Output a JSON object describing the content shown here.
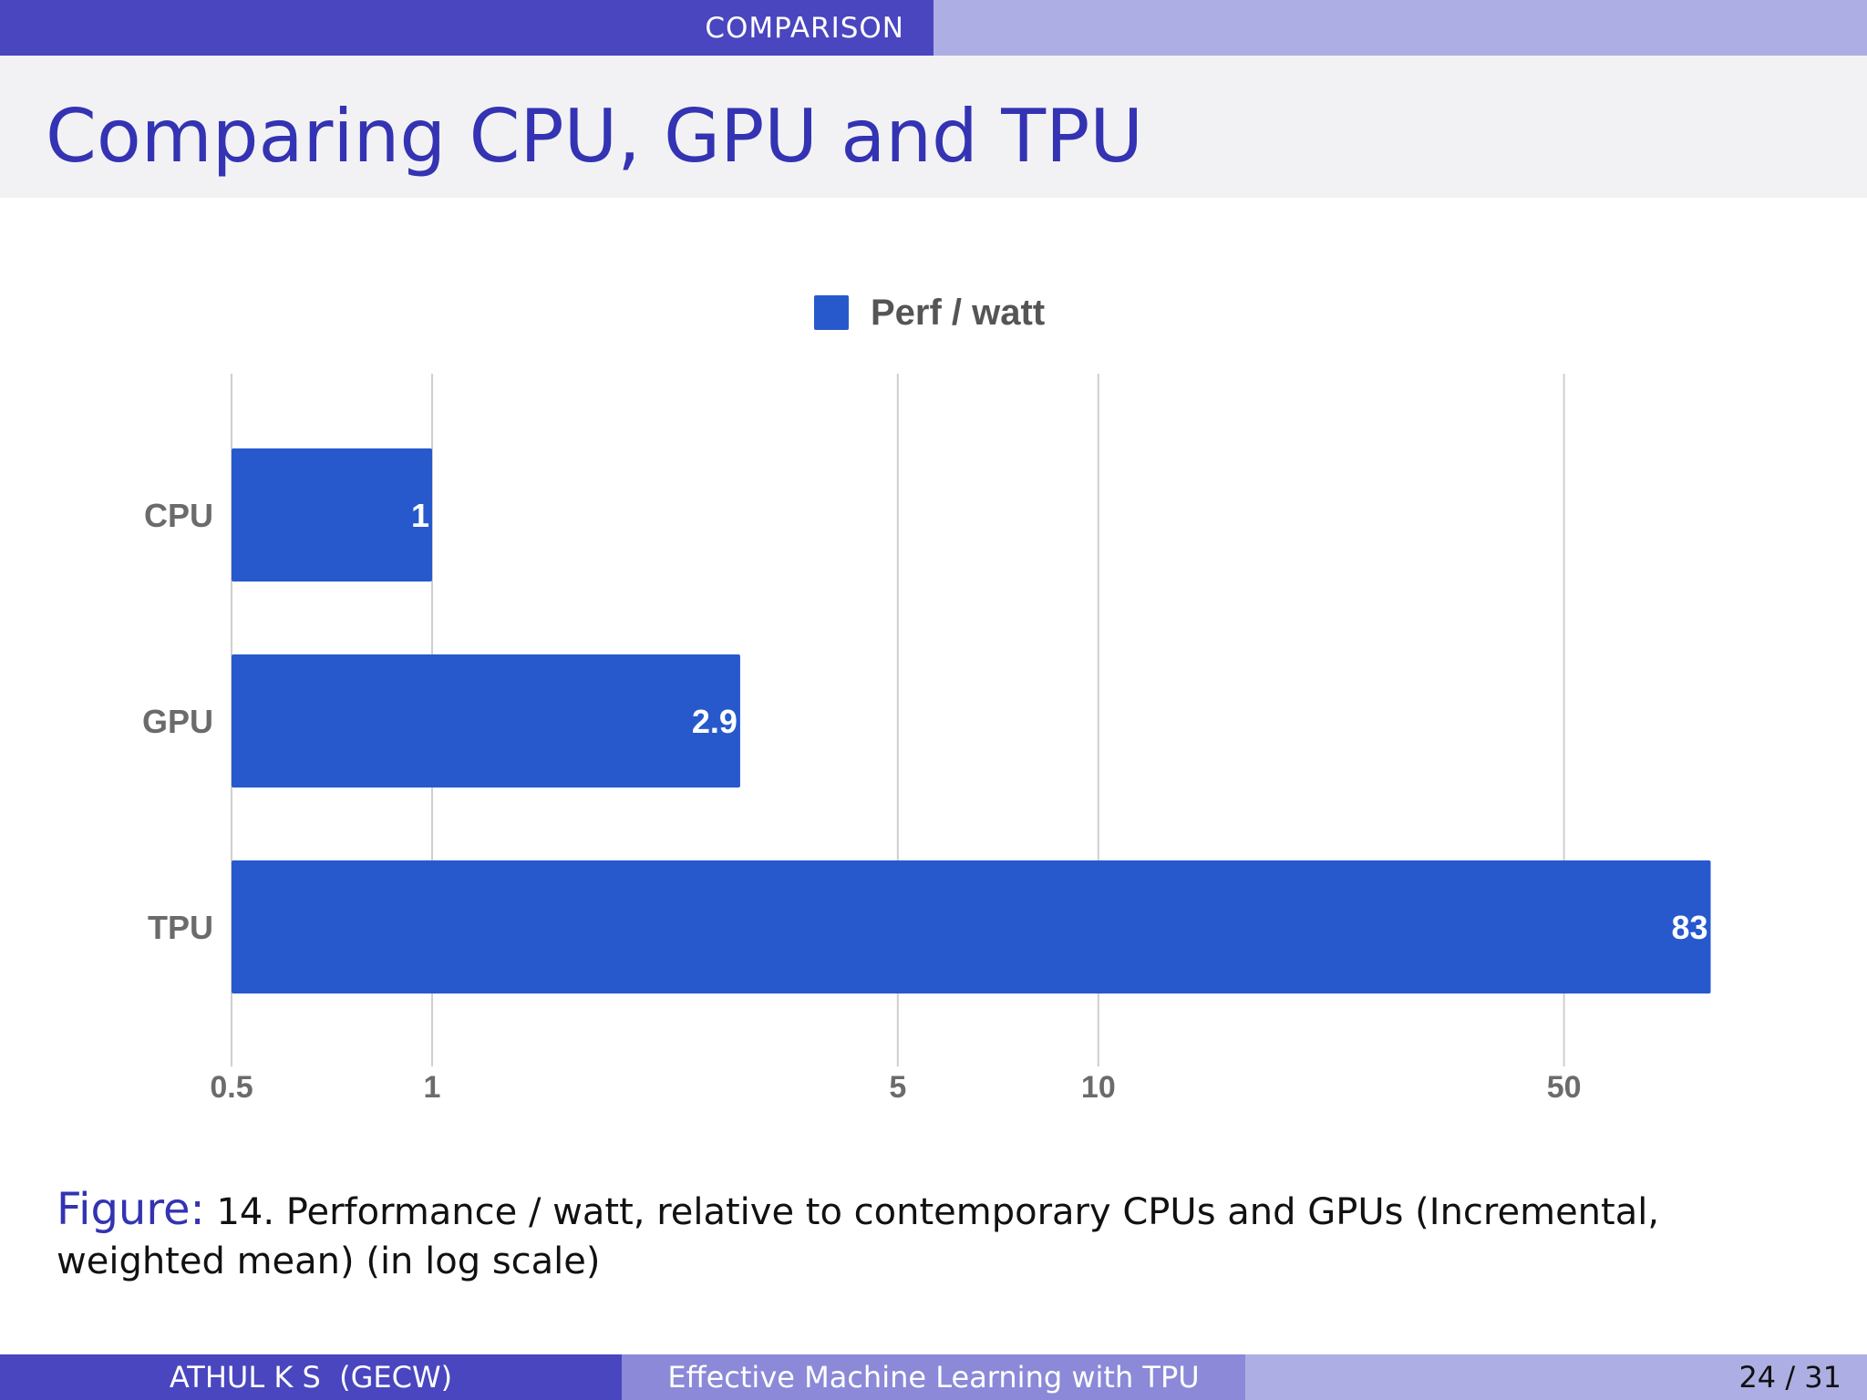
{
  "header": {
    "section": "COMPARISON",
    "title": "Comparing CPU, GPU and TPU"
  },
  "chart_data": {
    "type": "bar",
    "orientation": "horizontal",
    "xscale": "log",
    "xlim": [
      0.5,
      70
    ],
    "xticks": [
      0.5,
      1,
      5,
      10,
      50
    ],
    "xtick_labels": [
      "0.5",
      "1",
      "5",
      "10",
      "50"
    ],
    "categories": [
      "CPU",
      "GPU",
      "TPU"
    ],
    "series": [
      {
        "name": "Perf / watt",
        "values": [
          1,
          2.9,
          83
        ],
        "value_labels": [
          "1",
          "2.9",
          "83"
        ]
      }
    ],
    "legend": "top-center",
    "grid": true,
    "colors": {
      "bar": "#2759cd",
      "grid": "#cfcfcf",
      "tick_text": "#6b6b6b",
      "legend_text": "#555555"
    }
  },
  "caption": {
    "prefix": "Figure:",
    "text": "14. Performance / watt, relative to contemporary CPUs and GPUs (Incremental, weighted mean) (in log scale)"
  },
  "footer": {
    "author": "ATHUL K S  (GECW)",
    "talk": "Effective Machine Learning with TPU",
    "page": "24 / 31"
  }
}
